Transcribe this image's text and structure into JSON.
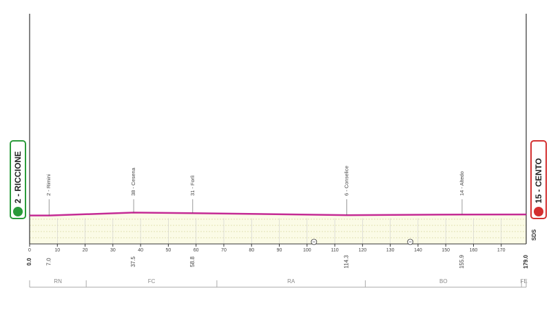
{
  "chart_data": {
    "type": "profile",
    "x": [
      0.0,
      7.0,
      37.5,
      58.8,
      114.3,
      155.9,
      179.0
    ],
    "x_labels": [
      "0.0",
      "7.0",
      "37.5",
      "58.8",
      "114.3",
      "155.9",
      "179.0"
    ],
    "values": [
      2,
      2,
      38,
      31,
      6,
      14,
      15
    ],
    "value_labels": [
      "2 - RICCIONE",
      "2 - Rimini",
      "38 - Cesena",
      "31 - Forlì",
      "6 - Conselice",
      "14 - Altedo",
      "15 - CENTO"
    ],
    "color": "#c42a94",
    "fill": "#fbfbe6",
    "xlim": [
      0,
      179
    ],
    "ylim": [
      -350,
      2500
    ],
    "xticks": [
      0,
      10,
      20,
      30,
      40,
      50,
      60,
      70,
      80,
      90,
      100,
      110,
      120,
      130,
      140,
      150,
      160,
      170
    ],
    "grid": true,
    "sprints": [
      102.5,
      137.2
    ],
    "provinces": [
      {
        "label": "RN",
        "start": 0,
        "end": 20.4
      },
      {
        "label": "FC",
        "start": 20.4,
        "end": 67.5
      },
      {
        "label": "RA",
        "start": 67.5,
        "end": 121
      },
      {
        "label": "BO",
        "start": 121,
        "end": 177.3
      },
      {
        "label": "FE",
        "start": 177.3,
        "end": 179
      }
    ],
    "logo": "SDS"
  }
}
